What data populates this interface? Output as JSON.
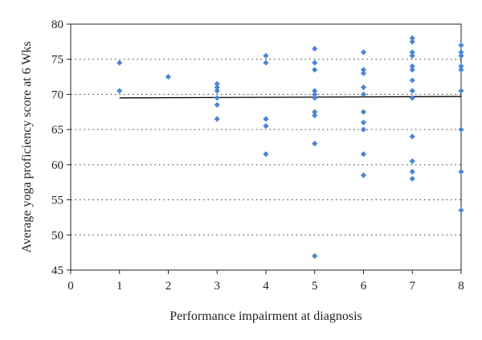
{
  "chart_data": {
    "type": "scatter",
    "xlabel": "Performance impairment at diagnosis",
    "ylabel": "Average yoga proficiency score at 6 Wks",
    "xlim": [
      0,
      8
    ],
    "ylim": [
      45,
      80
    ],
    "x_ticks": [
      0,
      1,
      2,
      3,
      4,
      5,
      6,
      7,
      8
    ],
    "y_ticks": [
      45,
      50,
      55,
      60,
      65,
      70,
      75,
      80
    ],
    "grid": "horizontal dotted",
    "point_color": "#4a86d8",
    "series": [
      {
        "points": [
          [
            1,
            74.5
          ],
          [
            1,
            70.5
          ],
          [
            2,
            72.5
          ],
          [
            3,
            71.5
          ],
          [
            3,
            71
          ],
          [
            3,
            70.5
          ],
          [
            3,
            69.5
          ],
          [
            3,
            68.5
          ],
          [
            3,
            66.5
          ],
          [
            4,
            75.5
          ],
          [
            4,
            74.5
          ],
          [
            4,
            66.5
          ],
          [
            4,
            65.5
          ],
          [
            4,
            61.5
          ],
          [
            5,
            76.5
          ],
          [
            5,
            74.5
          ],
          [
            5,
            73.5
          ],
          [
            5,
            70.5
          ],
          [
            5,
            70
          ],
          [
            5,
            69.5
          ],
          [
            5,
            67.5
          ],
          [
            5,
            67
          ],
          [
            5,
            63
          ],
          [
            5,
            47
          ],
          [
            6,
            76
          ],
          [
            6,
            73.5
          ],
          [
            6,
            73
          ],
          [
            6,
            71
          ],
          [
            6,
            70
          ],
          [
            6,
            67.5
          ],
          [
            6,
            66
          ],
          [
            6,
            65
          ],
          [
            6,
            61.5
          ],
          [
            6,
            58.5
          ],
          [
            7,
            78
          ],
          [
            7,
            77.5
          ],
          [
            7,
            76
          ],
          [
            7,
            75.5
          ],
          [
            7,
            74
          ],
          [
            7,
            73.5
          ],
          [
            7,
            72
          ],
          [
            7,
            70.5
          ],
          [
            7,
            69.5
          ],
          [
            7,
            64
          ],
          [
            7,
            60.5
          ],
          [
            7,
            59
          ],
          [
            7,
            58
          ],
          [
            8,
            77
          ],
          [
            8,
            76
          ],
          [
            8,
            75.5
          ],
          [
            8,
            74
          ],
          [
            8,
            73.5
          ],
          [
            8,
            70.5
          ],
          [
            8,
            65
          ],
          [
            8,
            59
          ],
          [
            8,
            53.5
          ]
        ]
      }
    ],
    "trendline": {
      "x": [
        1,
        8
      ],
      "y": [
        69.5,
        69.7
      ],
      "color": "#000000"
    }
  }
}
